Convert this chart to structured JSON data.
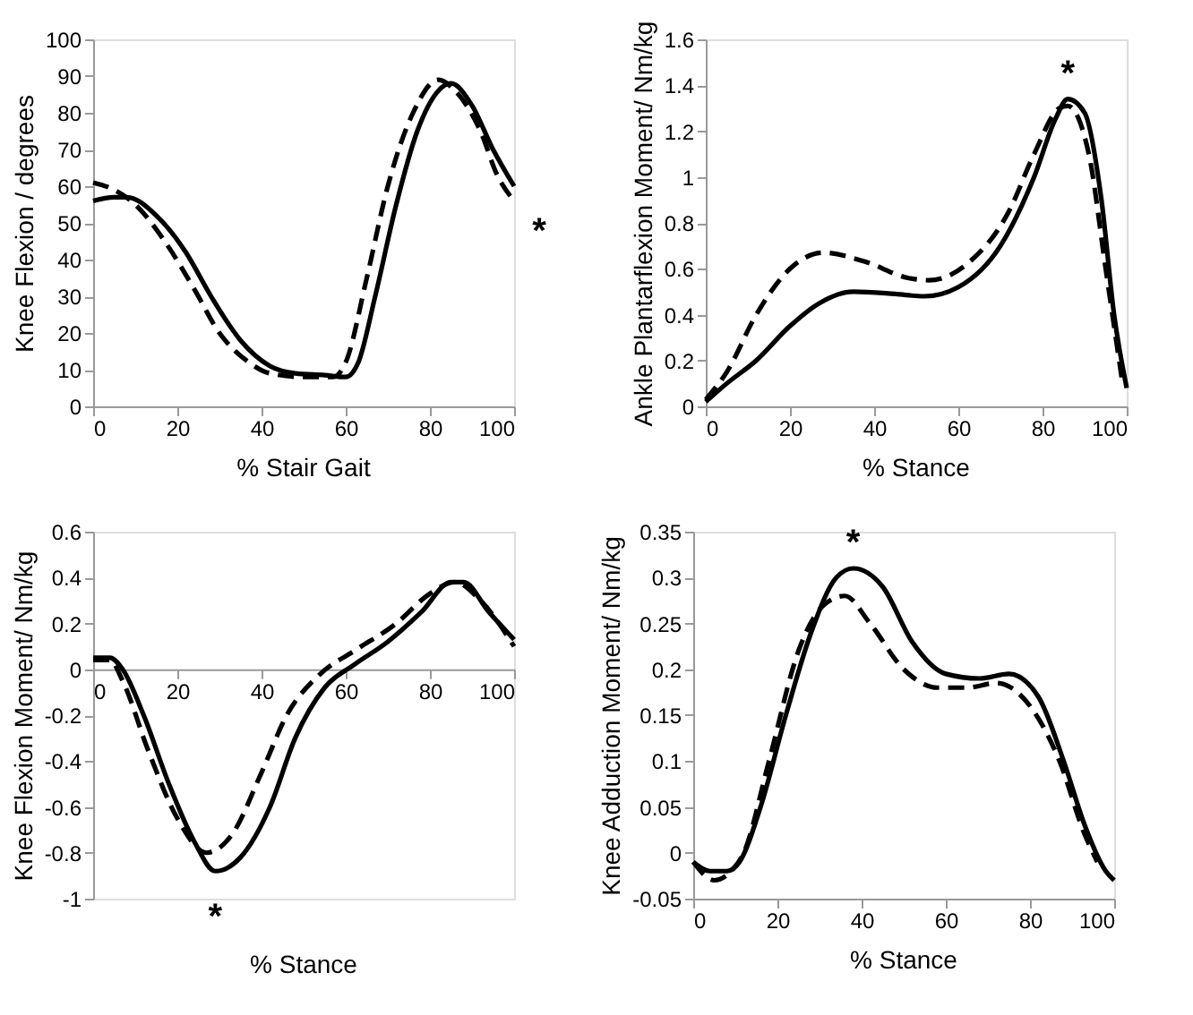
{
  "chart_data": [
    {
      "type": "line",
      "xlabel": "% Stair Gait",
      "ylabel": "Knee Flexion / degrees",
      "xlim": [
        0,
        100
      ],
      "xticks": [
        0,
        20,
        40,
        60,
        80,
        100
      ],
      "ylim": [
        0,
        100
      ],
      "yticks": [
        0,
        10,
        20,
        30,
        40,
        50,
        60,
        70,
        80,
        90,
        100
      ],
      "grid": false,
      "annotations": [
        "*"
      ],
      "series": [
        {
          "color": "#000000",
          "line_style": "solid",
          "x": [
            0,
            5,
            8,
            15,
            22,
            28,
            35,
            42,
            48,
            55,
            60,
            63,
            67,
            72,
            77,
            82,
            85,
            90,
            95,
            100
          ],
          "values": [
            56,
            57,
            57,
            52,
            42,
            30,
            18,
            11,
            9,
            8.5,
            8,
            12,
            30,
            55,
            75,
            86,
            88,
            82,
            70,
            60
          ]
        },
        {
          "color": "#000000",
          "line_style": "dashed",
          "x": [
            0,
            5,
            10,
            17,
            24,
            30,
            37,
            42,
            50,
            57,
            60,
            65,
            70,
            76,
            82,
            86,
            92,
            96,
            100
          ],
          "values": [
            61,
            59,
            55,
            45,
            32,
            20,
            12,
            9,
            8,
            8,
            12,
            35,
            60,
            80,
            89,
            86,
            75,
            63,
            56
          ]
        }
      ]
    },
    {
      "type": "line",
      "xlabel": "% Stance",
      "ylabel": "Ankle Plantarflexion Moment/ Nm/kg",
      "xlim": [
        0,
        100
      ],
      "xticks": [
        0,
        20,
        40,
        60,
        80,
        100
      ],
      "ylim": [
        0,
        1.6
      ],
      "yticks": [
        0,
        0.2,
        0.4,
        0.6,
        0.8,
        1,
        1.2,
        1.4,
        1.6
      ],
      "grid": false,
      "annotations": [
        "*"
      ],
      "series": [
        {
          "color": "#000000",
          "line_style": "solid",
          "x": [
            0,
            5,
            12,
            20,
            27,
            35,
            45,
            52,
            60,
            70,
            78,
            83,
            86,
            90,
            94,
            97,
            100
          ],
          "values": [
            0.02,
            0.1,
            0.2,
            0.35,
            0.45,
            0.5,
            0.49,
            0.48,
            0.52,
            0.7,
            1.0,
            1.25,
            1.34,
            1.28,
            0.9,
            0.4,
            0.08
          ]
        },
        {
          "color": "#000000",
          "line_style": "dashed",
          "x": [
            0,
            5,
            12,
            20,
            28,
            38,
            48,
            53,
            62,
            72,
            78,
            84,
            86,
            91,
            95,
            99
          ],
          "values": [
            0.03,
            0.15,
            0.4,
            0.6,
            0.67,
            0.63,
            0.56,
            0.55,
            0.62,
            0.85,
            1.1,
            1.3,
            1.31,
            1.1,
            0.6,
            0.1
          ]
        }
      ]
    },
    {
      "type": "line",
      "xlabel": "% Stance",
      "ylabel": "Knee Flexion Moment/ Nm/kg",
      "xlim": [
        0,
        100
      ],
      "xticks": [
        0,
        20,
        40,
        60,
        80,
        100
      ],
      "ylim": [
        -1,
        0.6
      ],
      "yticks": [
        -1,
        -0.8,
        -0.6,
        -0.4,
        -0.2,
        0,
        0.2,
        0.4,
        0.6
      ],
      "grid": false,
      "annotations": [
        "*"
      ],
      "series": [
        {
          "color": "#000000",
          "line_style": "solid",
          "x": [
            0,
            4,
            7,
            12,
            18,
            24,
            29,
            35,
            42,
            48,
            55,
            62,
            70,
            78,
            85,
            88,
            94,
            100
          ],
          "values": [
            0.05,
            0.05,
            0,
            -0.2,
            -0.5,
            -0.75,
            -0.88,
            -0.82,
            -0.6,
            -0.3,
            -0.08,
            0.02,
            0.12,
            0.25,
            0.38,
            0.38,
            0.25,
            0.13
          ]
        },
        {
          "color": "#000000",
          "line_style": "dashed",
          "x": [
            0,
            4,
            7,
            13,
            20,
            27,
            33,
            40,
            46,
            54,
            62,
            72,
            80,
            86,
            92,
            100
          ],
          "values": [
            0.04,
            0.04,
            -0.05,
            -0.35,
            -0.65,
            -0.8,
            -0.72,
            -0.45,
            -0.2,
            -0.02,
            0.08,
            0.2,
            0.33,
            0.38,
            0.3,
            0.1
          ]
        }
      ]
    },
    {
      "type": "line",
      "xlabel": "% Stance",
      "ylabel": "Knee Adduction Moment/ Nm/kg",
      "xlim": [
        0,
        100
      ],
      "xticks": [
        0,
        20,
        40,
        60,
        80,
        100
      ],
      "ylim": [
        -0.05,
        0.35
      ],
      "yticks": [
        -0.05,
        0,
        0.05,
        0.1,
        0.15,
        0.2,
        0.25,
        0.3,
        0.35
      ],
      "grid": false,
      "annotations": [
        "*"
      ],
      "series": [
        {
          "color": "#000000",
          "line_style": "solid",
          "x": [
            0,
            4,
            8,
            11,
            16,
            22,
            28,
            34,
            38,
            45,
            52,
            60,
            68,
            75,
            82,
            88,
            93,
            98,
            100
          ],
          "values": [
            -0.01,
            -0.02,
            -0.02,
            -0.01,
            0.05,
            0.15,
            0.24,
            0.3,
            0.31,
            0.29,
            0.23,
            0.195,
            0.19,
            0.195,
            0.17,
            0.1,
            0.03,
            -0.02,
            -0.03
          ]
        },
        {
          "color": "#000000",
          "line_style": "dashed",
          "x": [
            0,
            5,
            9,
            12,
            18,
            25,
            31,
            36,
            42,
            50,
            58,
            65,
            72,
            80,
            87,
            93,
            96
          ],
          "values": [
            -0.01,
            -0.03,
            -0.02,
            0.0,
            0.1,
            0.22,
            0.27,
            0.28,
            0.25,
            0.2,
            0.18,
            0.18,
            0.185,
            0.16,
            0.1,
            0.02,
            -0.01
          ]
        }
      ]
    }
  ]
}
